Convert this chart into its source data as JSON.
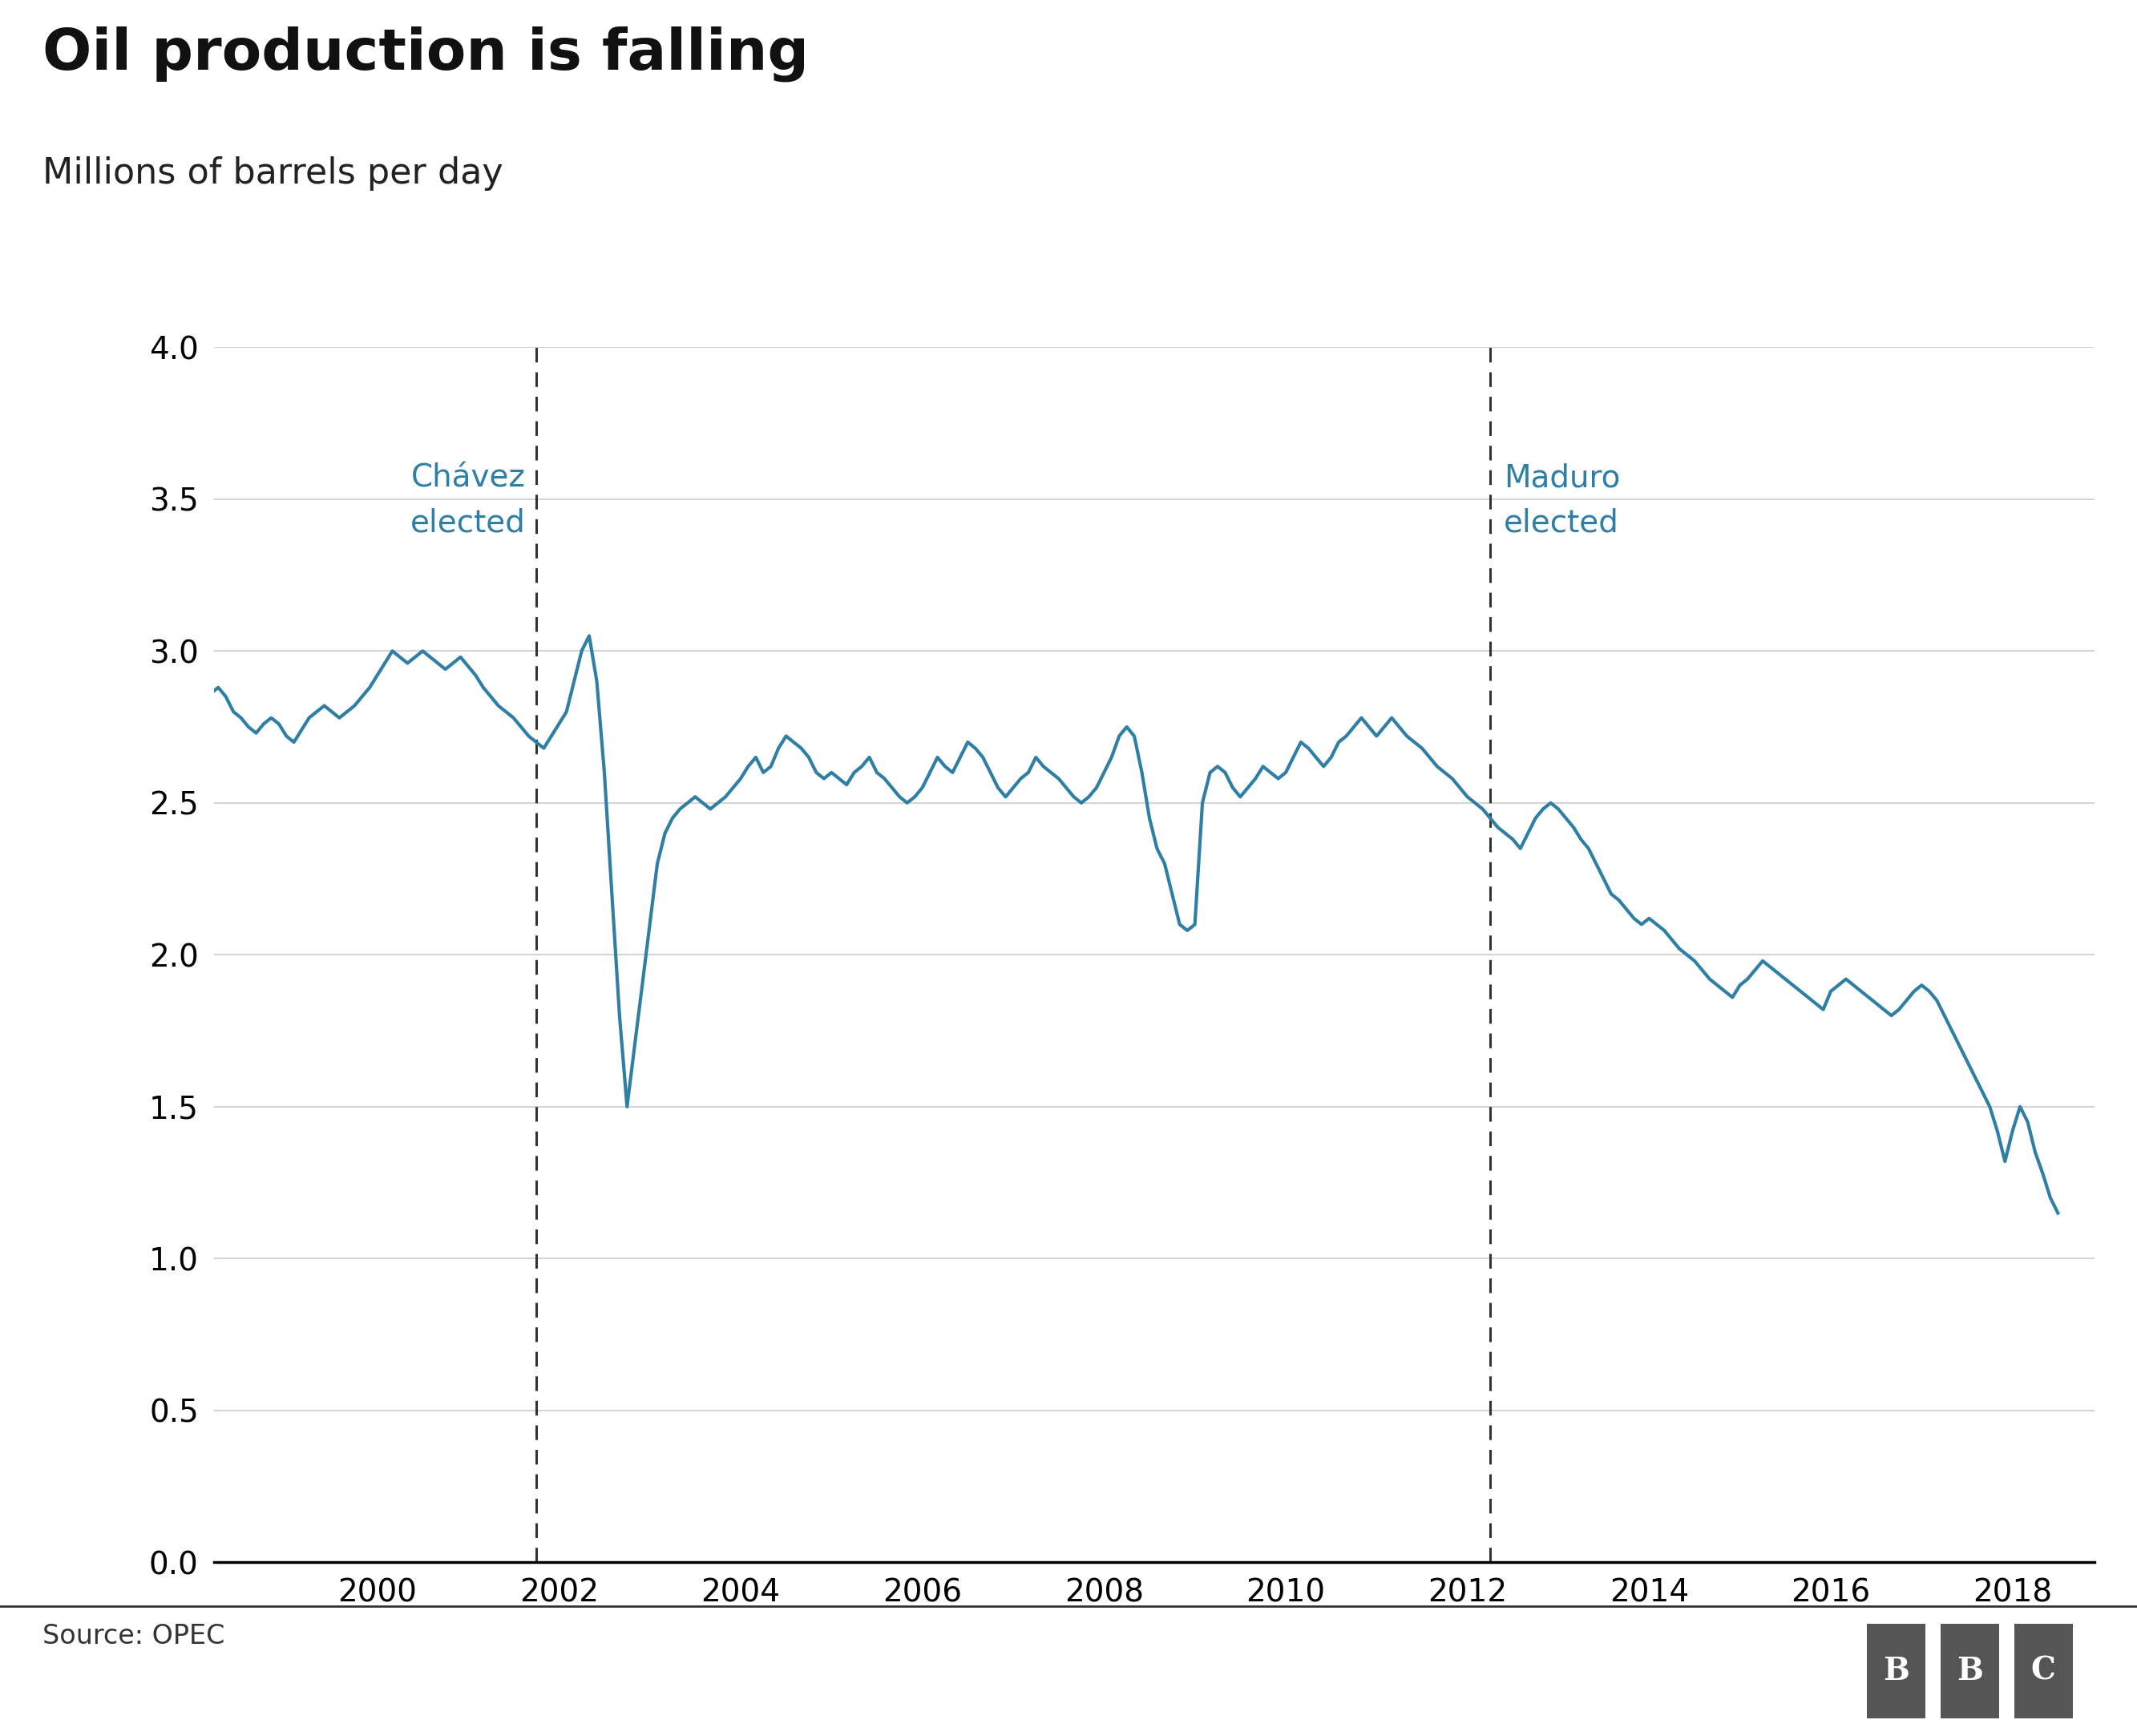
{
  "title": "Oil production is falling",
  "subtitle": "Millions of barrels per day",
  "source_text": "Source: OPEC",
  "line_color": "#2e7ea6",
  "line_width": 3.0,
  "background_color": "#ffffff",
  "ylim": [
    0.0,
    4.0
  ],
  "yticks": [
    0.0,
    0.5,
    1.0,
    1.5,
    2.0,
    2.5,
    3.0,
    3.5,
    4.0
  ],
  "xlim_start": 1998.2,
  "xlim_end": 2018.9,
  "chavez_year": 2001.75,
  "maduro_year": 2012.25,
  "chavez_label": "Chávez\nelected",
  "maduro_label": "Maduro\nelected",
  "annotation_color": "#2e7ea6",
  "grid_color": "#cccccc",
  "axis_color": "#000000",
  "title_fontsize": 52,
  "subtitle_fontsize": 32,
  "tick_fontsize": 28,
  "annotation_fontsize": 28,
  "source_fontsize": 24,
  "xtick_years": [
    2000,
    2002,
    2004,
    2006,
    2008,
    2010,
    2012,
    2014,
    2016,
    2018
  ],
  "dates": [
    1998.0,
    1998.083,
    1998.167,
    1998.25,
    1998.333,
    1998.417,
    1998.5,
    1998.583,
    1998.667,
    1998.75,
    1998.833,
    1998.917,
    1999.0,
    1999.083,
    1999.167,
    1999.25,
    1999.333,
    1999.417,
    1999.5,
    1999.583,
    1999.667,
    1999.75,
    1999.833,
    1999.917,
    2000.0,
    2000.083,
    2000.167,
    2000.25,
    2000.333,
    2000.417,
    2000.5,
    2000.583,
    2000.667,
    2000.75,
    2000.833,
    2000.917,
    2001.0,
    2001.083,
    2001.167,
    2001.25,
    2001.333,
    2001.417,
    2001.5,
    2001.583,
    2001.667,
    2001.75,
    2001.833,
    2001.917,
    2002.0,
    2002.083,
    2002.167,
    2002.25,
    2002.333,
    2002.417,
    2002.5,
    2002.583,
    2002.667,
    2002.75,
    2002.833,
    2002.917,
    2003.0,
    2003.083,
    2003.167,
    2003.25,
    2003.333,
    2003.417,
    2003.5,
    2003.583,
    2003.667,
    2003.75,
    2003.833,
    2003.917,
    2004.0,
    2004.083,
    2004.167,
    2004.25,
    2004.333,
    2004.417,
    2004.5,
    2004.583,
    2004.667,
    2004.75,
    2004.833,
    2004.917,
    2005.0,
    2005.083,
    2005.167,
    2005.25,
    2005.333,
    2005.417,
    2005.5,
    2005.583,
    2005.667,
    2005.75,
    2005.833,
    2005.917,
    2006.0,
    2006.083,
    2006.167,
    2006.25,
    2006.333,
    2006.417,
    2006.5,
    2006.583,
    2006.667,
    2006.75,
    2006.833,
    2006.917,
    2007.0,
    2007.083,
    2007.167,
    2007.25,
    2007.333,
    2007.417,
    2007.5,
    2007.583,
    2007.667,
    2007.75,
    2007.833,
    2007.917,
    2008.0,
    2008.083,
    2008.167,
    2008.25,
    2008.333,
    2008.417,
    2008.5,
    2008.583,
    2008.667,
    2008.75,
    2008.833,
    2008.917,
    2009.0,
    2009.083,
    2009.167,
    2009.25,
    2009.333,
    2009.417,
    2009.5,
    2009.583,
    2009.667,
    2009.75,
    2009.833,
    2009.917,
    2010.0,
    2010.083,
    2010.167,
    2010.25,
    2010.333,
    2010.417,
    2010.5,
    2010.583,
    2010.667,
    2010.75,
    2010.833,
    2010.917,
    2011.0,
    2011.083,
    2011.167,
    2011.25,
    2011.333,
    2011.417,
    2011.5,
    2011.583,
    2011.667,
    2011.75,
    2011.833,
    2011.917,
    2012.0,
    2012.083,
    2012.167,
    2012.25,
    2012.333,
    2012.417,
    2012.5,
    2012.583,
    2012.667,
    2012.75,
    2012.833,
    2012.917,
    2013.0,
    2013.083,
    2013.167,
    2013.25,
    2013.333,
    2013.417,
    2013.5,
    2013.583,
    2013.667,
    2013.75,
    2013.833,
    2013.917,
    2014.0,
    2014.083,
    2014.167,
    2014.25,
    2014.333,
    2014.417,
    2014.5,
    2014.583,
    2014.667,
    2014.75,
    2014.833,
    2014.917,
    2015.0,
    2015.083,
    2015.167,
    2015.25,
    2015.333,
    2015.417,
    2015.5,
    2015.583,
    2015.667,
    2015.75,
    2015.833,
    2015.917,
    2016.0,
    2016.083,
    2016.167,
    2016.25,
    2016.333,
    2016.417,
    2016.5,
    2016.583,
    2016.667,
    2016.75,
    2016.833,
    2016.917,
    2017.0,
    2017.083,
    2017.167,
    2017.25,
    2017.333,
    2017.417,
    2017.5,
    2017.583,
    2017.667,
    2017.75,
    2017.833,
    2017.917,
    2018.0,
    2018.083,
    2018.167,
    2018.25,
    2018.333,
    2018.417,
    2018.5
  ],
  "values": [
    2.8,
    2.83,
    2.86,
    2.88,
    2.85,
    2.8,
    2.78,
    2.75,
    2.73,
    2.76,
    2.78,
    2.76,
    2.72,
    2.7,
    2.74,
    2.78,
    2.8,
    2.82,
    2.8,
    2.78,
    2.8,
    2.82,
    2.85,
    2.88,
    2.92,
    2.96,
    3.0,
    2.98,
    2.96,
    2.98,
    3.0,
    2.98,
    2.96,
    2.94,
    2.96,
    2.98,
    2.95,
    2.92,
    2.88,
    2.85,
    2.82,
    2.8,
    2.78,
    2.75,
    2.72,
    2.7,
    2.68,
    2.72,
    2.76,
    2.8,
    2.9,
    3.0,
    3.05,
    2.9,
    2.6,
    2.2,
    1.8,
    1.5,
    1.7,
    1.9,
    2.1,
    2.3,
    2.4,
    2.45,
    2.48,
    2.5,
    2.52,
    2.5,
    2.48,
    2.5,
    2.52,
    2.55,
    2.58,
    2.62,
    2.65,
    2.6,
    2.62,
    2.68,
    2.72,
    2.7,
    2.68,
    2.65,
    2.6,
    2.58,
    2.6,
    2.58,
    2.56,
    2.6,
    2.62,
    2.65,
    2.6,
    2.58,
    2.55,
    2.52,
    2.5,
    2.52,
    2.55,
    2.6,
    2.65,
    2.62,
    2.6,
    2.65,
    2.7,
    2.68,
    2.65,
    2.6,
    2.55,
    2.52,
    2.55,
    2.58,
    2.6,
    2.65,
    2.62,
    2.6,
    2.58,
    2.55,
    2.52,
    2.5,
    2.52,
    2.55,
    2.6,
    2.65,
    2.72,
    2.75,
    2.72,
    2.6,
    2.45,
    2.35,
    2.3,
    2.2,
    2.1,
    2.08,
    2.1,
    2.5,
    2.6,
    2.62,
    2.6,
    2.55,
    2.52,
    2.55,
    2.58,
    2.62,
    2.6,
    2.58,
    2.6,
    2.65,
    2.7,
    2.68,
    2.65,
    2.62,
    2.65,
    2.7,
    2.72,
    2.75,
    2.78,
    2.75,
    2.72,
    2.75,
    2.78,
    2.75,
    2.72,
    2.7,
    2.68,
    2.65,
    2.62,
    2.6,
    2.58,
    2.55,
    2.52,
    2.5,
    2.48,
    2.45,
    2.42,
    2.4,
    2.38,
    2.35,
    2.4,
    2.45,
    2.48,
    2.5,
    2.48,
    2.45,
    2.42,
    2.38,
    2.35,
    2.3,
    2.25,
    2.2,
    2.18,
    2.15,
    2.12,
    2.1,
    2.12,
    2.1,
    2.08,
    2.05,
    2.02,
    2.0,
    1.98,
    1.95,
    1.92,
    1.9,
    1.88,
    1.86,
    1.9,
    1.92,
    1.95,
    1.98,
    1.96,
    1.94,
    1.92,
    1.9,
    1.88,
    1.86,
    1.84,
    1.82,
    1.88,
    1.9,
    1.92,
    1.9,
    1.88,
    1.86,
    1.84,
    1.82,
    1.8,
    1.82,
    1.85,
    1.88,
    1.9,
    1.88,
    1.85,
    1.8,
    1.75,
    1.7,
    1.65,
    1.6,
    1.55,
    1.5,
    1.42,
    1.32,
    1.42,
    1.5,
    1.45,
    1.35,
    1.28,
    1.2,
    1.15
  ]
}
